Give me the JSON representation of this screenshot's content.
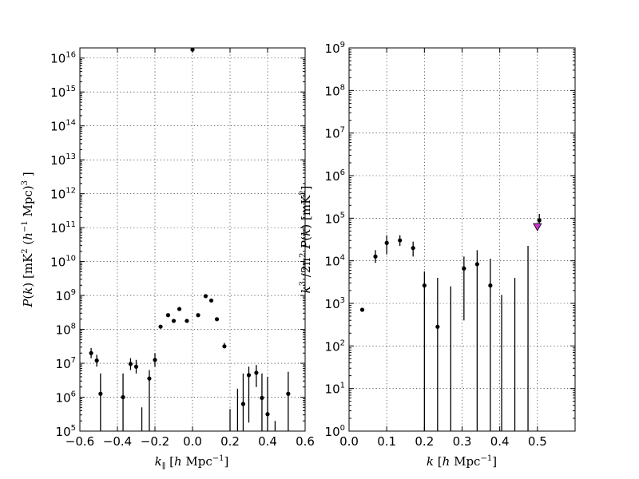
{
  "chart_data": [
    {
      "type": "scatter",
      "panel": "left",
      "xlabel": "k_∥ [h Mpc⁻¹]",
      "ylabel": "P(k) [mK² (h⁻¹ Mpc)³]",
      "xlim": [
        -0.6,
        0.6
      ],
      "ylim_log10": [
        5,
        16.3
      ],
      "yscale": "log",
      "grid": true,
      "xticks": [
        "−0.6",
        "−0.4",
        "−0.2",
        "0.0",
        "0.2",
        "0.4",
        "0.6"
      ],
      "yticks_exp": [
        "5",
        "6",
        "7",
        "8",
        "9",
        "10",
        "11",
        "12",
        "13",
        "14",
        "15",
        "16"
      ],
      "points": [
        {
          "x": -0.54,
          "log10y": 7.3,
          "err": [
            7.15,
            7.45
          ]
        },
        {
          "x": -0.51,
          "log10y": 7.08,
          "err": [
            6.9,
            7.25
          ]
        },
        {
          "x": -0.49,
          "log10y": 6.1,
          "err": [
            5.0,
            6.7
          ]
        },
        {
          "x": -0.37,
          "log10y": 6.0,
          "err": [
            5.0,
            6.7
          ]
        },
        {
          "x": -0.33,
          "log10y": 6.98,
          "err": [
            6.8,
            7.15
          ]
        },
        {
          "x": -0.3,
          "log10y": 6.9,
          "err": [
            6.7,
            7.1
          ]
        },
        {
          "x": -0.27,
          "log10y": null,
          "err": [
            5.0,
            5.7
          ]
        },
        {
          "x": -0.23,
          "log10y": 6.55,
          "err": [
            5.0,
            6.8
          ]
        },
        {
          "x": -0.2,
          "log10y": 7.1,
          "err": [
            6.9,
            7.3
          ]
        },
        {
          "x": -0.17,
          "log10y": 8.08,
          "err": null
        },
        {
          "x": -0.13,
          "log10y": 8.42,
          "err": null
        },
        {
          "x": -0.1,
          "log10y": 8.25,
          "err": null
        },
        {
          "x": -0.07,
          "log10y": 8.6,
          "err": null
        },
        {
          "x": -0.03,
          "log10y": 8.25,
          "err": null
        },
        {
          "x": 0.0,
          "log10y": 16.25,
          "err": null
        },
        {
          "x": 0.03,
          "log10y": 8.42,
          "err": null
        },
        {
          "x": 0.07,
          "log10y": 8.98,
          "err": null
        },
        {
          "x": 0.1,
          "log10y": 8.85,
          "err": null
        },
        {
          "x": 0.13,
          "log10y": 8.3,
          "err": null
        },
        {
          "x": 0.17,
          "log10y": 7.5,
          "err": [
            7.45,
            7.6
          ]
        },
        {
          "x": 0.2,
          "log10y": null,
          "err": [
            5.0,
            5.65
          ]
        },
        {
          "x": 0.24,
          "log10y": null,
          "err": [
            5.0,
            6.25
          ]
        },
        {
          "x": 0.27,
          "log10y": 5.8,
          "err": [
            5.0,
            6.7
          ]
        },
        {
          "x": 0.3,
          "log10y": 6.65,
          "err": [
            5.25,
            6.9
          ]
        },
        {
          "x": 0.34,
          "log10y": 6.72,
          "err": [
            6.3,
            6.95
          ]
        },
        {
          "x": 0.37,
          "log10y": 5.98,
          "err": [
            5.0,
            6.7
          ]
        },
        {
          "x": 0.4,
          "log10y": 5.5,
          "err": [
            5.0,
            6.6
          ]
        },
        {
          "x": 0.44,
          "log10y": null,
          "err": [
            5.0,
            5.3
          ]
        },
        {
          "x": 0.51,
          "log10y": 6.1,
          "err": [
            5.0,
            6.75
          ]
        }
      ]
    },
    {
      "type": "scatter",
      "panel": "right",
      "xlabel": "k [h Mpc⁻¹]",
      "ylabel": "k³/2π² P(k) [mK²]",
      "xlim": [
        0.0,
        0.6
      ],
      "ylim_log10": [
        0,
        9
      ],
      "yscale": "log",
      "grid": true,
      "xticks": [
        "0.0",
        "0.1",
        "0.2",
        "0.3",
        "0.4",
        "0.5"
      ],
      "yticks_exp": [
        "0",
        "1",
        "2",
        "3",
        "4",
        "5",
        "6",
        "7",
        "8",
        "9"
      ],
      "upper_limit_marker": {
        "x": 0.5,
        "log10y": 4.8,
        "color": "#cc33cc"
      },
      "points": [
        {
          "x": 0.035,
          "log10y": 2.85,
          "err": null
        },
        {
          "x": 0.07,
          "log10y": 4.1,
          "err": [
            3.95,
            4.25
          ]
        },
        {
          "x": 0.1,
          "log10y": 4.42,
          "err": [
            4.15,
            4.6
          ]
        },
        {
          "x": 0.135,
          "log10y": 4.48,
          "err": [
            4.35,
            4.6
          ]
        },
        {
          "x": 0.17,
          "log10y": 4.3,
          "err": [
            4.1,
            4.45
          ]
        },
        {
          "x": 0.2,
          "log10y": 3.42,
          "err": [
            0,
            3.75
          ]
        },
        {
          "x": 0.235,
          "log10y": 2.45,
          "err": [
            0,
            3.6
          ]
        },
        {
          "x": 0.27,
          "log10y": null,
          "err": [
            0,
            3.4
          ]
        },
        {
          "x": 0.305,
          "log10y": 3.82,
          "err": [
            2.6,
            4.1
          ]
        },
        {
          "x": 0.34,
          "log10y": 3.92,
          "err": [
            0,
            4.25
          ]
        },
        {
          "x": 0.375,
          "log10y": 3.42,
          "err": [
            0,
            4.05
          ]
        },
        {
          "x": 0.405,
          "log10y": null,
          "err": [
            0,
            3.2
          ]
        },
        {
          "x": 0.44,
          "log10y": null,
          "err": [
            0,
            3.6
          ]
        },
        {
          "x": 0.475,
          "log10y": null,
          "err": [
            0,
            4.35
          ]
        },
        {
          "x": 0.505,
          "log10y": 4.95,
          "err": [
            4.8,
            5.1
          ]
        }
      ]
    }
  ]
}
